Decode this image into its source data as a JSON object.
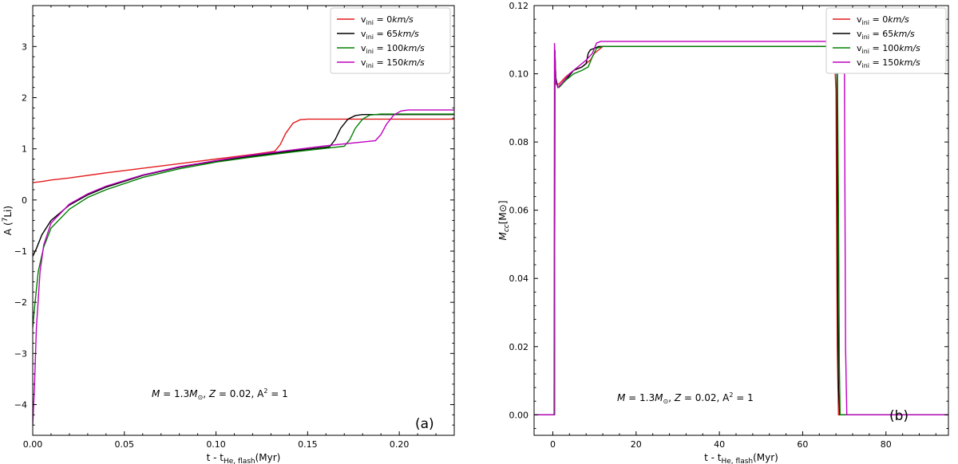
{
  "chart_data": [
    {
      "type": "line",
      "panel_label": "(a)",
      "xlabel": "t - t",
      "xlabel_sub": "He, flash",
      "xlabel_unit": "(Myr)",
      "ylabel": "A (",
      "ylabel_sup": "7",
      "ylabel_tail": "Li)",
      "xlim": [
        0,
        0.23
      ],
      "ylim": [
        -4.6,
        3.8
      ],
      "xticks": [
        0.0,
        0.05,
        0.1,
        0.15,
        0.2
      ],
      "xtick_labels": [
        "0.00",
        "0.05",
        "0.10",
        "0.15",
        "0.20"
      ],
      "yticks": [
        -4,
        -3,
        -2,
        -1,
        0,
        1,
        2,
        3
      ],
      "ytick_labels": [
        "−4",
        "−3",
        "−2",
        "−1",
        "0",
        "1",
        "2",
        "3"
      ],
      "annotation": "M = 1.3M⊙, Z = 0.02, A² = 1",
      "legend_position": "top-right",
      "series": [
        {
          "name": "v_ini = 0km/s",
          "color": "#e41a1c",
          "x": [
            0,
            0.005,
            0.01,
            0.02,
            0.04,
            0.06,
            0.08,
            0.1,
            0.12,
            0.132,
            0.135,
            0.138,
            0.142,
            0.146,
            0.15,
            0.16,
            0.18,
            0.2,
            0.23
          ],
          "y": [
            0.34,
            0.36,
            0.39,
            0.43,
            0.53,
            0.62,
            0.71,
            0.8,
            0.89,
            0.95,
            1.08,
            1.3,
            1.5,
            1.57,
            1.58,
            1.58,
            1.58,
            1.58,
            1.58
          ]
        },
        {
          "name": "v_ini = 65km/s",
          "color": "#000000",
          "x": [
            0,
            0.002,
            0.005,
            0.01,
            0.02,
            0.03,
            0.04,
            0.06,
            0.08,
            0.1,
            0.12,
            0.14,
            0.162,
            0.165,
            0.168,
            0.172,
            0.176,
            0.18,
            0.19,
            0.23
          ],
          "y": [
            -1.1,
            -0.95,
            -0.68,
            -0.4,
            -0.1,
            0.1,
            0.25,
            0.48,
            0.64,
            0.76,
            0.86,
            0.95,
            1.04,
            1.18,
            1.4,
            1.58,
            1.65,
            1.67,
            1.67,
            1.67
          ]
        },
        {
          "name": "v_ini = 100km/s",
          "color": "#008000",
          "x": [
            0,
            0.001,
            0.003,
            0.006,
            0.01,
            0.02,
            0.03,
            0.04,
            0.06,
            0.08,
            0.1,
            0.12,
            0.14,
            0.17,
            0.173,
            0.176,
            0.18,
            0.184,
            0.19,
            0.23
          ],
          "y": [
            -2.5,
            -2.1,
            -1.4,
            -0.92,
            -0.55,
            -0.18,
            0.05,
            0.2,
            0.44,
            0.61,
            0.74,
            0.84,
            0.93,
            1.05,
            1.18,
            1.4,
            1.58,
            1.66,
            1.68,
            1.68
          ]
        },
        {
          "name": "v_ini = 150km/s",
          "color": "#bf00bf",
          "x": [
            0,
            0.001,
            0.002,
            0.004,
            0.006,
            0.01,
            0.02,
            0.03,
            0.04,
            0.06,
            0.08,
            0.1,
            0.12,
            0.14,
            0.16,
            0.187,
            0.19,
            0.193,
            0.197,
            0.201,
            0.205,
            0.23
          ],
          "y": [
            -4.4,
            -3.6,
            -2.5,
            -1.4,
            -0.88,
            -0.45,
            -0.08,
            0.12,
            0.27,
            0.49,
            0.65,
            0.77,
            0.88,
            0.97,
            1.06,
            1.16,
            1.28,
            1.48,
            1.66,
            1.74,
            1.76,
            1.76
          ]
        }
      ]
    },
    {
      "type": "line",
      "panel_label": "(b)",
      "xlabel": "t - t",
      "xlabel_sub": "He, flash",
      "xlabel_unit": "(Myr)",
      "ylabel": "M",
      "ylabel_sub": "cc",
      "ylabel_tail": "[M⊙]",
      "xlim": [
        -4.5,
        95
      ],
      "ylim": [
        -0.006,
        0.12
      ],
      "xticks": [
        0,
        20,
        40,
        60,
        80
      ],
      "xtick_labels": [
        "0",
        "20",
        "40",
        "60",
        "80"
      ],
      "yticks": [
        0.0,
        0.02,
        0.04,
        0.06,
        0.08,
        0.1,
        0.12
      ],
      "ytick_labels": [
        "0.00",
        "0.02",
        "0.04",
        "0.06",
        "0.08",
        "0.10",
        "0.12"
      ],
      "annotation": "M = 1.3M⊙, Z = 0.02, A² = 1",
      "legend_position": "top-right",
      "series": [
        {
          "name": "v_ini = 0km/s",
          "color": "#e41a1c",
          "x": [
            -4.5,
            0.4,
            0.5,
            0.8,
            1.5,
            3,
            5,
            7,
            9,
            10,
            11,
            12,
            67.5,
            68,
            68.3,
            68.6,
            95
          ],
          "y": [
            0,
            0,
            0.104,
            0.097,
            0.097,
            0.099,
            0.101,
            0.102,
            0.104,
            0.106,
            0.107,
            0.108,
            0.108,
            0.095,
            0.02,
            0,
            0
          ]
        },
        {
          "name": "v_ini = 65km/s",
          "color": "#000000",
          "x": [
            -4.5,
            0.4,
            0.5,
            0.7,
            1.2,
            3,
            5,
            7,
            8,
            8.5,
            9,
            10,
            11,
            12,
            68.2,
            68.4,
            68.6,
            68.9,
            95
          ],
          "y": [
            0,
            0,
            0.107,
            0.099,
            0.096,
            0.098,
            0.101,
            0.102,
            0.103,
            0.106,
            0.107,
            0.1075,
            0.108,
            0.108,
            0.108,
            0.04,
            0.008,
            0,
            0
          ]
        },
        {
          "name": "v_ini = 100km/s",
          "color": "#008000",
          "x": [
            -4.5,
            0.4,
            0.5,
            0.8,
            1.5,
            3,
            5,
            7,
            8.5,
            9.5,
            10.5,
            12,
            68.3,
            68.6,
            68.8,
            69,
            95
          ],
          "y": [
            0,
            0,
            0.106,
            0.097,
            0.096,
            0.098,
            0.1,
            0.101,
            0.102,
            0.105,
            0.1075,
            0.108,
            0.108,
            0.06,
            0.015,
            0,
            0
          ]
        },
        {
          "name": "v_ini = 150km/s",
          "color": "#bf00bf",
          "x": [
            -4.5,
            0.3,
            0.4,
            0.7,
            1.2,
            2,
            4,
            6,
            8,
            9.5,
            10.5,
            11.5,
            70,
            70.3,
            70.6,
            95
          ],
          "y": [
            0,
            0,
            0.109,
            0.098,
            0.096,
            0.097,
            0.1,
            0.102,
            0.104,
            0.106,
            0.109,
            0.1095,
            0.1095,
            0.02,
            0,
            0
          ]
        }
      ]
    }
  ]
}
